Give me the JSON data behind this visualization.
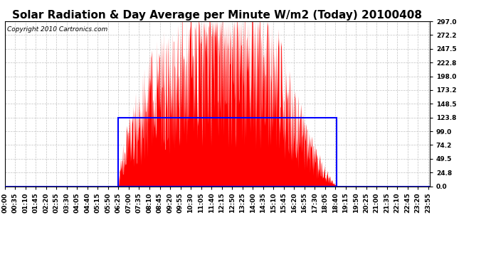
{
  "title": "Solar Radiation & Day Average per Minute W/m2 (Today) 20100408",
  "copyright": "Copyright 2010 Cartronics.com",
  "background_color": "#ffffff",
  "plot_bg_color": "#ffffff",
  "y_ticks": [
    0.0,
    24.8,
    49.5,
    74.2,
    99.0,
    123.8,
    148.5,
    173.2,
    198.0,
    222.8,
    247.5,
    272.2,
    297.0
  ],
  "ylim": [
    0,
    297.0
  ],
  "bar_color": "#ff0000",
  "avg_rect_color": "#0000ff",
  "avg_value": 123.8,
  "sunrise_min": 385,
  "sunset_min": 1125,
  "n_minutes": 1441,
  "tick_interval_min": 35,
  "grid_color": "#bbbbbb",
  "title_fontsize": 11,
  "tick_fontsize": 6.5,
  "copyright_fontsize": 6.5
}
